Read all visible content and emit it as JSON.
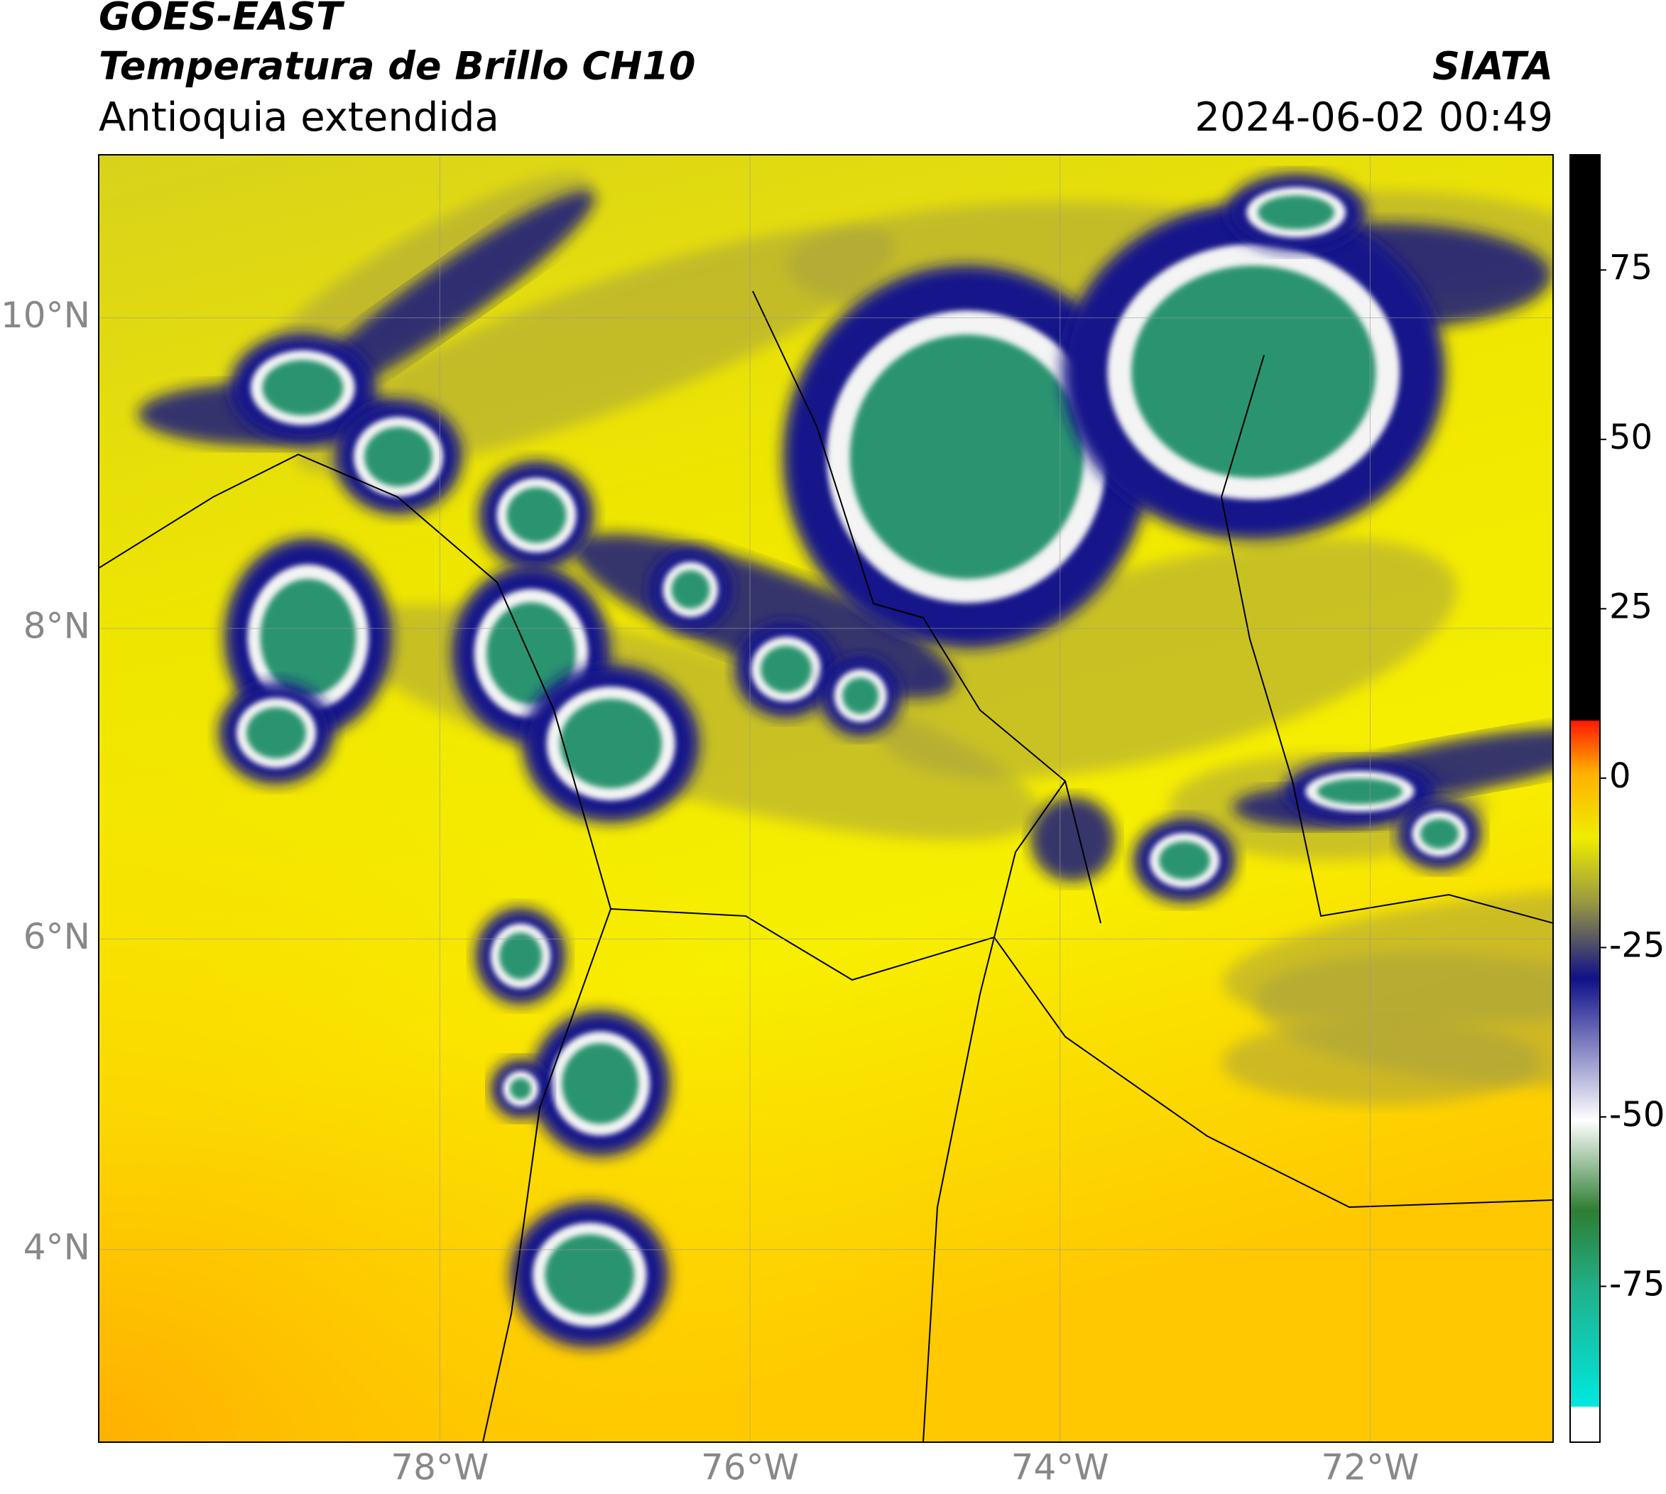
{
  "header": {
    "title": "GOES-EAST",
    "subtitle": "Temperatura de Brillo CH10",
    "region": "Antioquia extendida",
    "agency": "SIATA",
    "datetime": "2024-06-02 00:49"
  },
  "map": {
    "xlim": [
      -80.2,
      -70.82
    ],
    "ylim": [
      2.76,
      11.05
    ],
    "xticks": [
      {
        "value": -78,
        "label": "78°W"
      },
      {
        "value": -76,
        "label": "76°W"
      },
      {
        "value": -74,
        "label": "74°W"
      },
      {
        "value": -72,
        "label": "72°W"
      }
    ],
    "yticks": [
      {
        "value": 4,
        "label": "4°N"
      },
      {
        "value": 6,
        "label": "6°N"
      },
      {
        "value": 8,
        "label": "8°N"
      },
      {
        "value": 10,
        "label": "10°N"
      }
    ],
    "grid": true
  },
  "colorbar": {
    "lim": [
      -98,
      92
    ],
    "ticks": [
      -75,
      -50,
      -25,
      0,
      25,
      50,
      75
    ]
  }
}
